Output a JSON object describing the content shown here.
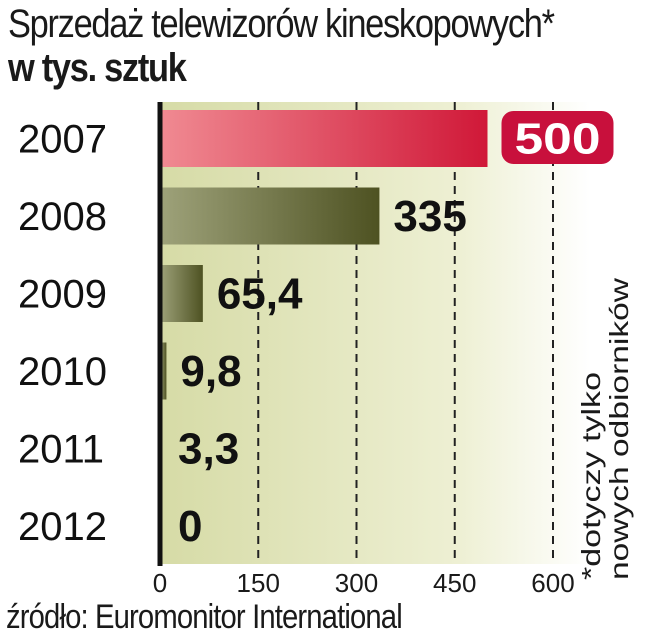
{
  "header": {
    "title": "Sprzedaż telewizorów kineskopowych*",
    "subtitle": "w tys. sztuk"
  },
  "footnote": {
    "line1": "*dotyczy tylko",
    "line2": "nowych odbiorników"
  },
  "footer": {
    "source": "źródło: Euromonitor International"
  },
  "colors": {
    "highlight_bar": "#d8304f",
    "highlight_label_bg": "#c8103c",
    "bar": "#6b6e34",
    "plot_background": "#eef0d4",
    "axis": "#111111"
  },
  "chart_data": {
    "type": "bar",
    "orientation": "horizontal",
    "title": "Sprzedaż telewizorów kineskopowych*",
    "subtitle": "w tys. sztuk",
    "categories": [
      "2007",
      "2008",
      "2009",
      "2010",
      "2011",
      "2012"
    ],
    "values": [
      500,
      335,
      65.4,
      9.8,
      3.3,
      0
    ],
    "value_labels": [
      "500",
      "335",
      "65,4",
      "9,8",
      "3,3",
      "0"
    ],
    "highlight_index": 0,
    "xlim": [
      0,
      600
    ],
    "xticks": [
      0,
      150,
      300,
      450,
      600
    ],
    "xtick_labels": [
      "0",
      "150",
      "300",
      "450",
      "600"
    ],
    "grid": "dashed vertical lines at 150, 300, 450, 600",
    "xlabel": "",
    "ylabel": ""
  }
}
